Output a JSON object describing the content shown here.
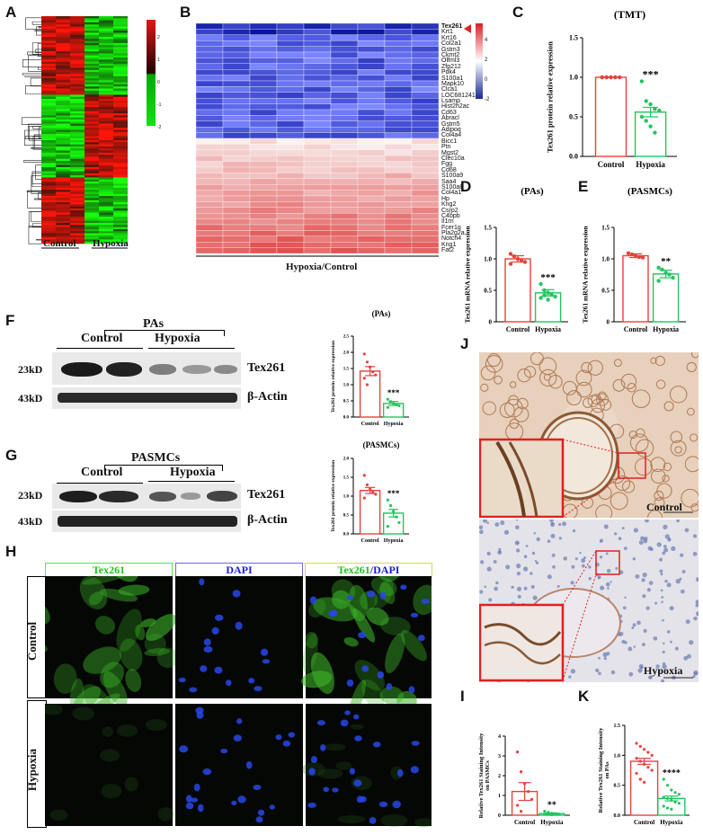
{
  "panels": {
    "A": {
      "label": "A",
      "groups": [
        "Control",
        "Hypoxia"
      ],
      "scale_ticks": [
        "2",
        "1",
        "0",
        "-1",
        "-2"
      ]
    },
    "B": {
      "label": "B",
      "xlabel": "Hypoxia/Control",
      "highlight_gene": "Tex261",
      "genes_down": [
        "Tex261",
        "Krt1",
        "Krt16",
        "Col2a1",
        "Gstm3",
        "Ckmt2",
        "Olfml3",
        "Zfp212",
        "Pdk4",
        "S100a1",
        "Mapk10",
        "Clca1",
        "LOC681241",
        "Lsamp",
        "Hist2h2ac",
        "Cd63",
        "Abracl",
        "Gstm5",
        "Adipoq",
        "Col4a4"
      ],
      "genes_up": [
        "Bicc1",
        "Ptn",
        "Mgst2",
        "Clec10a",
        "Fgg",
        "Cd68",
        "S100a9",
        "Saa4",
        "S100a8",
        "Col4a1",
        "Hp",
        "Kng2",
        "Csrp2",
        "C4bpb",
        "Il1rn",
        "Fcer1g",
        "Pla2g2a",
        "Notch4",
        "Kng1",
        "Fat2"
      ],
      "scale_ticks": [
        "4",
        "2",
        "0",
        "-2"
      ]
    },
    "C": {
      "label": "C"
    },
    "D": {
      "label": "D"
    },
    "E": {
      "label": "E"
    },
    "F": {
      "label": "F",
      "group_title": "PAs",
      "groups": [
        "Control",
        "Hypoxia"
      ],
      "mw": [
        "23kD",
        "43kD"
      ],
      "proteins": [
        "Tex261",
        "β-Actin"
      ]
    },
    "G": {
      "label": "G",
      "group_title": "PASMCs",
      "groups": [
        "Control",
        "Hypoxia"
      ],
      "mw": [
        "23kD",
        "43kD"
      ],
      "proteins": [
        "Tex261",
        "β-Actin"
      ]
    },
    "H": {
      "label": "H",
      "headers": [
        "Tex261",
        "DAPI",
        "Tex261",
        "/DAPI"
      ],
      "rows": [
        "Control",
        "Hypoxia"
      ]
    },
    "I": {
      "label": "I"
    },
    "J": {
      "label": "J",
      "captions": [
        "Control",
        "Hypoxia"
      ]
    },
    "K": {
      "label": "K"
    }
  },
  "colors": {
    "control": "#e8413c",
    "hypoxia": "#22c55e",
    "heat_blue": "#1b2a8f",
    "heat_red": "#e0202a"
  },
  "chart_data": [
    {
      "panel": "C",
      "type": "bar",
      "title": "(TMT)",
      "ylabel": "Tex261 protein relative expression",
      "categories": [
        "Control",
        "Hypoxia"
      ],
      "values": [
        1.0,
        0.56
      ],
      "errors": [
        0,
        0.06
      ],
      "significance": "***",
      "ylim": [
        0,
        1.5
      ],
      "yticks": [
        "0.0",
        "0.5",
        "1.0",
        "1.5"
      ]
    },
    {
      "panel": "D",
      "type": "bar",
      "title": "(PAs)",
      "ylabel": "Tex261 mRNA relative expression",
      "categories": [
        "Control",
        "Hypoxia"
      ],
      "values": [
        1.0,
        0.46
      ],
      "errors": [
        0.05,
        0.05
      ],
      "significance": "***",
      "ylim": [
        0,
        1.5
      ],
      "yticks": [
        "0",
        "0.5",
        "1.0",
        "1.5"
      ]
    },
    {
      "panel": "E",
      "type": "bar",
      "title": "(PASMCs)",
      "ylabel": "Tex261 mRNA relative expression",
      "categories": [
        "Control",
        "Hypoxia"
      ],
      "values": [
        1.05,
        0.76
      ],
      "errors": [
        0.03,
        0.06
      ],
      "significance": "**",
      "ylim": [
        0,
        1.5
      ],
      "yticks": [
        "0",
        "0.5",
        "1.0",
        "1.5"
      ]
    },
    {
      "panel": "F",
      "type": "bar",
      "title": "(PAs)",
      "ylabel": "Tex261 protein relative expression",
      "categories": [
        "Control",
        "Hypoxia"
      ],
      "values": [
        1.42,
        0.42
      ],
      "errors": [
        0.14,
        0.06
      ],
      "significance": "***",
      "ylim": [
        0,
        2.5
      ],
      "yticks": [
        "0.0",
        "0.5",
        "1.0",
        "1.5",
        "2.0",
        "2.5"
      ]
    },
    {
      "panel": "G",
      "type": "bar",
      "title": "(PASMCs)",
      "ylabel": "Tex261 protein relative expression",
      "categories": [
        "Control",
        "Hypoxia"
      ],
      "values": [
        1.15,
        0.55
      ],
      "errors": [
        0.08,
        0.1
      ],
      "significance": "***",
      "ylim": [
        0,
        2.0
      ],
      "yticks": [
        "0.0",
        "0.5",
        "1.0",
        "1.5",
        "2.0"
      ]
    },
    {
      "panel": "I",
      "type": "bar",
      "ylabel": "Relative Tex261 Staining Intensity on PASMCs",
      "categories": [
        "Control",
        "Hypoxia"
      ],
      "values": [
        1.2,
        0.08
      ],
      "errors": [
        0.45,
        0.03
      ],
      "significance": "**",
      "ylim": [
        0,
        4
      ],
      "yticks": [
        "0",
        "1",
        "2",
        "3",
        "4"
      ]
    },
    {
      "panel": "K",
      "type": "bar",
      "ylabel": "Relative Tex261 Staining Intensity on PAs",
      "categories": [
        "Control",
        "Hypoxia"
      ],
      "values": [
        0.9,
        0.28
      ],
      "errors": [
        0.05,
        0.04
      ],
      "significance": "****",
      "ylim": [
        0,
        1.5
      ],
      "yticks": [
        "0.0",
        "0.5",
        "1.0",
        "1.5"
      ]
    }
  ]
}
